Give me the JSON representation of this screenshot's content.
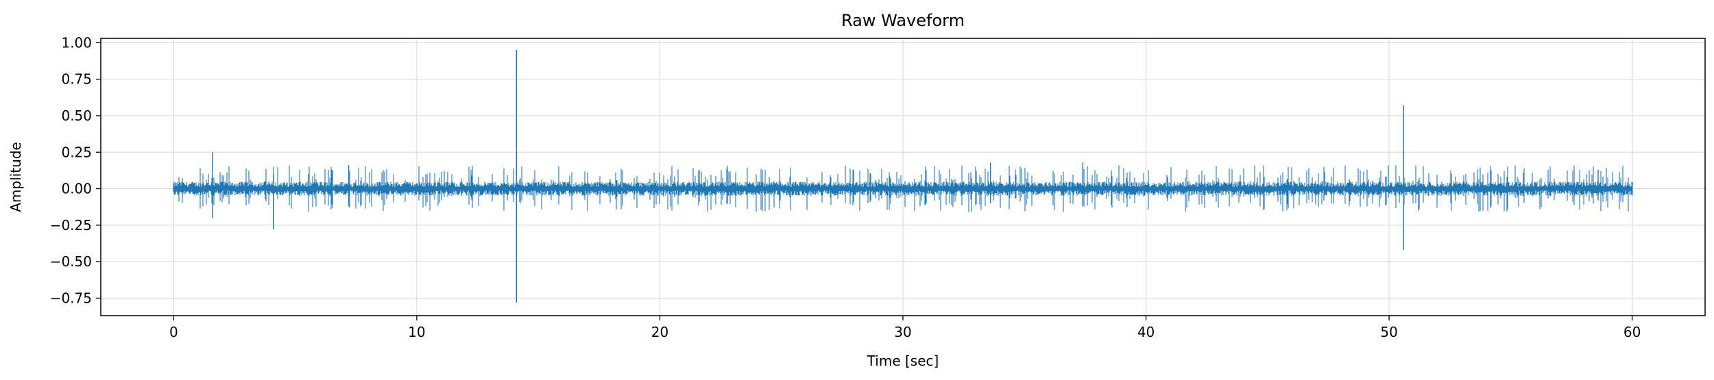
{
  "chart_data": {
    "type": "line",
    "title": "Raw Waveform",
    "xlabel": "Time [sec]",
    "ylabel": "Amplitude",
    "xlim": [
      -3,
      63
    ],
    "ylim": [
      -0.87,
      1.03
    ],
    "x_ticks": [
      0,
      10,
      20,
      30,
      40,
      50,
      60
    ],
    "x_tick_labels": [
      "0",
      "10",
      "20",
      "30",
      "40",
      "50",
      "60"
    ],
    "y_ticks": [
      1.0,
      0.75,
      0.5,
      0.25,
      0.0,
      -0.25,
      -0.5,
      -0.75
    ],
    "y_tick_labels": [
      "1.00",
      "0.75",
      "0.50",
      "0.25",
      "0.00",
      "−0.25",
      "−0.50",
      "−0.75"
    ],
    "grid": true,
    "line_color": "#1f77b4",
    "series": [
      {
        "time_range": [
          0,
          60
        ],
        "baseline_amplitude_range": [
          -0.08,
          0.08
        ],
        "spikes": [
          {
            "x": 1.6,
            "max": 0.25,
            "min": -0.2
          },
          {
            "x": 4.1,
            "max": 0.1,
            "min": -0.28
          },
          {
            "x": 7.2,
            "max": 0.16,
            "min": -0.12
          },
          {
            "x": 14.1,
            "max": 0.95,
            "min": -0.78
          },
          {
            "x": 33.6,
            "max": 0.18,
            "min": -0.1
          },
          {
            "x": 37.4,
            "max": 0.18,
            "min": -0.12
          },
          {
            "x": 50.6,
            "max": 0.57,
            "min": -0.42
          },
          {
            "x": 58.6,
            "max": 0.13,
            "min": -0.08
          }
        ]
      }
    ]
  }
}
